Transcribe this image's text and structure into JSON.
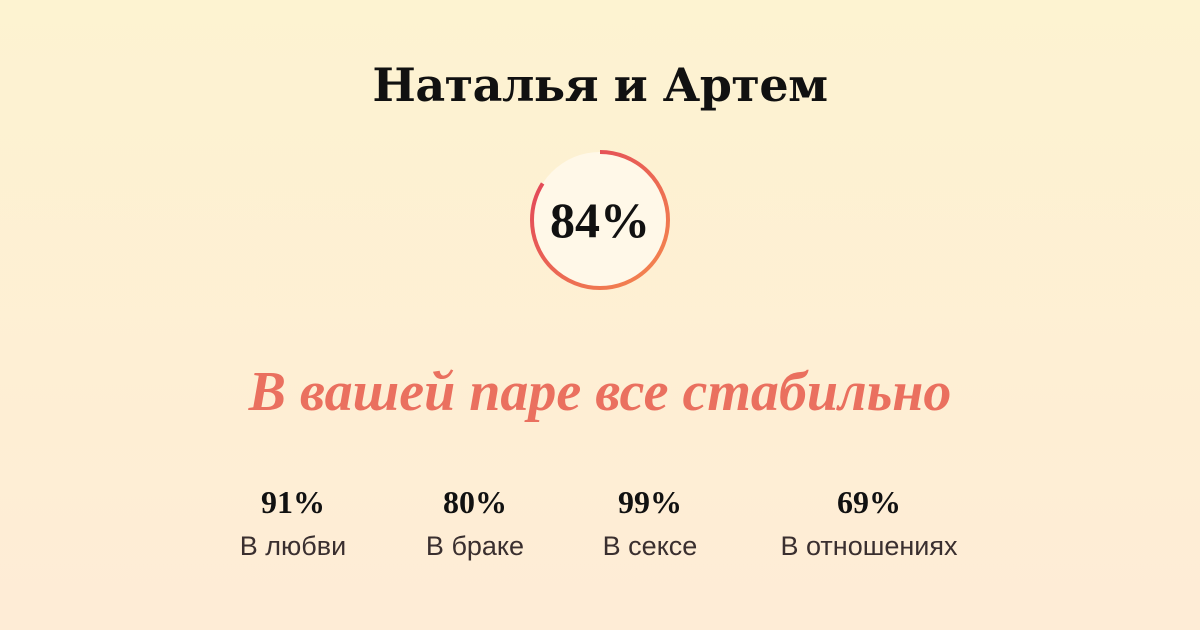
{
  "title": "Наталья и Артем",
  "overall": {
    "label": "84%",
    "value": 84,
    "colors": {
      "start": "#e0405a",
      "end": "#f58a4e",
      "fill": "#fff8e8"
    }
  },
  "verdict": "В вашей паре все стабильно",
  "stats": [
    {
      "value": "91%",
      "label": "В любви"
    },
    {
      "value": "80%",
      "label": "В браке"
    },
    {
      "value": "99%",
      "label": "В сексе"
    },
    {
      "value": "69%",
      "label": "В отношениях"
    }
  ],
  "colors": {
    "accent": "#ea705f",
    "background": "#fdf3d1"
  }
}
